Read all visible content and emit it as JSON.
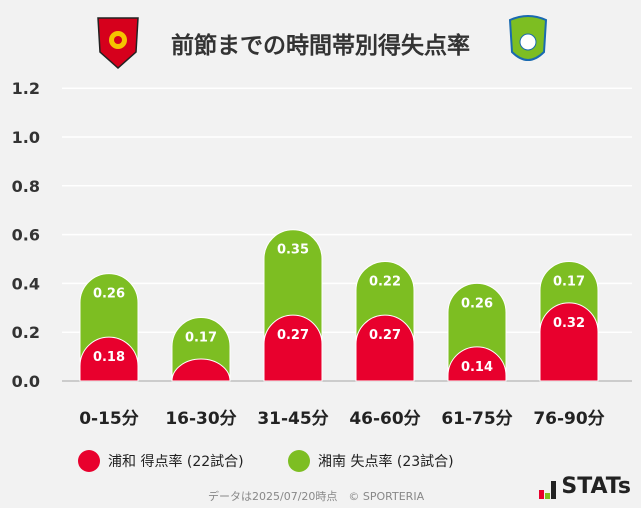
{
  "title": "前節までの時間帯別得失点率",
  "chart_data": {
    "type": "bar",
    "stacked": true,
    "categories": [
      "0-15分",
      "16-30分",
      "31-45分",
      "46-60分",
      "61-75分",
      "76-90分"
    ],
    "series": [
      {
        "name": "浦和 得点率 (22試合)",
        "color": "#e8002d",
        "values": [
          0.18,
          0.09,
          0.27,
          0.27,
          0.14,
          0.32
        ],
        "labels": [
          "0.18",
          "",
          "0.27",
          "0.27",
          "0.14",
          "0.32"
        ]
      },
      {
        "name": "湘南 失点率 (23試合)",
        "color": "#7dbe22",
        "values": [
          0.26,
          0.17,
          0.35,
          0.22,
          0.26,
          0.17
        ],
        "labels": [
          "0.26",
          "0.17",
          "0.35",
          "0.22",
          "0.26",
          "0.17"
        ]
      }
    ],
    "ylim": [
      0,
      1.2
    ],
    "yticks": [
      "0.0",
      "0.2",
      "0.4",
      "0.6",
      "0.8",
      "1.0",
      "1.2"
    ],
    "grid": true,
    "legend": "bottom"
  },
  "footer": "データは2025/07/20時点　© SPORTERIA",
  "brand": "STATs"
}
